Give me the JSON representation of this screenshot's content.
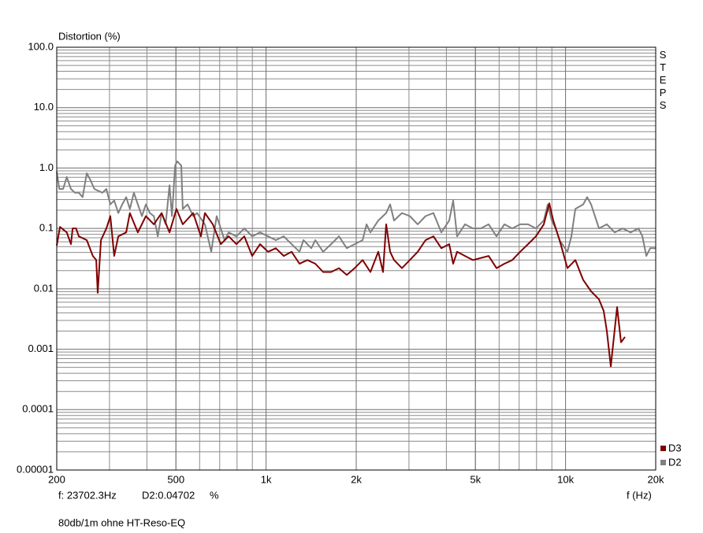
{
  "chart_data": {
    "type": "line",
    "y_label": "Distortion (%)",
    "x_label": "f (Hz)",
    "side_label": "STEPS",
    "cursor": {
      "frequency": "f: 23702.3Hz",
      "reading": "D2:0.04702",
      "unit": "%"
    },
    "note": "80db/1m ohne HT-Reso-EQ",
    "xscale": "log",
    "yscale": "log",
    "grid": true,
    "minor_grid": true,
    "legend": "bottom-right",
    "xlim": [
      200,
      20000
    ],
    "xticks": [
      200,
      500,
      {
        "value": 1000,
        "label": "1k"
      },
      {
        "value": 2000,
        "label": "2k"
      },
      {
        "value": 5000,
        "label": "5k"
      },
      {
        "value": 10000,
        "label": "10k"
      },
      {
        "value": 20000,
        "label": "20k"
      }
    ],
    "ylim": [
      1e-05,
      100
    ],
    "yticks": [
      {
        "value": 100,
        "label": "100.0"
      },
      {
        "value": 10,
        "label": "10.0"
      },
      {
        "value": 1,
        "label": "1.0"
      },
      0.1,
      0.01,
      0.001,
      0.0001,
      1e-05
    ],
    "series": [
      {
        "name": "D3",
        "color": "#800000",
        "x": [
          200,
          205,
          216,
          223,
          226,
          232,
          237,
          252,
          264,
          271,
          274,
          281,
          293,
          302,
          311,
          321,
          341,
          351,
          373,
          397,
          422,
          448,
          476,
          502,
          527,
          571,
          606,
          625,
          664,
          706,
          750,
          796,
          846,
          899,
          955,
          1015,
          1078,
          1145,
          1217,
          1293,
          1374,
          1460,
          1551,
          1648,
          1751,
          1860,
          1976,
          2100,
          2231,
          2370,
          2458,
          2518,
          2596,
          2675,
          2842,
          3020,
          3208,
          3409,
          3622,
          3848,
          4088,
          4214,
          4344,
          4616,
          4904,
          5535,
          5881,
          6248,
          6638,
          7053,
          7493,
          7962,
          8458,
          8826,
          9098,
          9549,
          10146,
          10779,
          11453,
          12168,
          12928,
          13408,
          13738,
          14158,
          14861,
          15321,
          15792
        ],
        "values": [
          0.052,
          0.106,
          0.086,
          0.055,
          0.1,
          0.1,
          0.074,
          0.064,
          0.035,
          0.03,
          0.0086,
          0.064,
          0.1,
          0.16,
          0.035,
          0.074,
          0.086,
          0.18,
          0.086,
          0.16,
          0.117,
          0.18,
          0.086,
          0.21,
          0.117,
          0.18,
          0.074,
          0.18,
          0.117,
          0.055,
          0.074,
          0.055,
          0.074,
          0.035,
          0.055,
          0.041,
          0.047,
          0.035,
          0.041,
          0.026,
          0.03,
          0.026,
          0.019,
          0.019,
          0.022,
          0.017,
          0.022,
          0.03,
          0.019,
          0.041,
          0.019,
          0.117,
          0.041,
          0.03,
          0.022,
          0.03,
          0.041,
          0.064,
          0.074,
          0.047,
          0.055,
          0.026,
          0.041,
          0.035,
          0.03,
          0.035,
          0.022,
          0.026,
          0.03,
          0.041,
          0.055,
          0.074,
          0.117,
          0.26,
          0.135,
          0.064,
          0.022,
          0.03,
          0.014,
          0.0091,
          0.0067,
          0.0043,
          0.002,
          0.00052,
          0.005,
          0.0013,
          0.0016
        ]
      },
      {
        "name": "D2",
        "color": "#808080",
        "x": [
          200,
          204,
          210,
          216,
          223,
          230,
          237,
          244,
          252,
          260,
          267,
          284,
          293,
          302,
          311,
          321,
          331,
          341,
          351,
          362,
          373,
          385,
          397,
          409,
          422,
          435,
          448,
          462,
          476,
          485,
          497,
          505,
          521,
          527,
          547,
          571,
          588,
          625,
          656,
          684,
          727,
          750,
          796,
          846,
          899,
          955,
          1015,
          1078,
          1145,
          1217,
          1293,
          1333,
          1416,
          1460,
          1551,
          1648,
          1751,
          1860,
          1976,
          2100,
          2165,
          2231,
          2370,
          2518,
          2596,
          2675,
          2842,
          3020,
          3208,
          3409,
          3622,
          3848,
          4088,
          4214,
          4344,
          4616,
          4904,
          5210,
          5535,
          5881,
          6248,
          6638,
          7053,
          7493,
          7962,
          8458,
          8720,
          8988,
          9265,
          9549,
          10146,
          10458,
          10779,
          11453,
          11805,
          12168,
          12928,
          13738,
          14594,
          15508,
          16484,
          17515,
          18052,
          18605,
          19175,
          20000
        ],
        "values": [
          0.87,
          0.45,
          0.45,
          0.71,
          0.45,
          0.39,
          0.39,
          0.33,
          0.82,
          0.61,
          0.45,
          0.39,
          0.45,
          0.25,
          0.29,
          0.18,
          0.25,
          0.33,
          0.21,
          0.39,
          0.25,
          0.16,
          0.25,
          0.18,
          0.16,
          0.074,
          0.18,
          0.117,
          0.52,
          0.16,
          1.1,
          1.29,
          1.1,
          0.21,
          0.25,
          0.16,
          0.18,
          0.117,
          0.041,
          0.16,
          0.064,
          0.086,
          0.074,
          0.1,
          0.074,
          0.086,
          0.074,
          0.064,
          0.074,
          0.055,
          0.041,
          0.064,
          0.047,
          0.064,
          0.041,
          0.055,
          0.074,
          0.047,
          0.055,
          0.064,
          0.117,
          0.086,
          0.135,
          0.18,
          0.25,
          0.135,
          0.18,
          0.16,
          0.117,
          0.16,
          0.18,
          0.086,
          0.135,
          0.29,
          0.074,
          0.117,
          0.1,
          0.1,
          0.117,
          0.074,
          0.117,
          0.1,
          0.117,
          0.117,
          0.1,
          0.135,
          0.25,
          0.135,
          0.1,
          0.064,
          0.041,
          0.074,
          0.21,
          0.25,
          0.33,
          0.25,
          0.1,
          0.117,
          0.086,
          0.1,
          0.086,
          0.1,
          0.074,
          0.035,
          0.047,
          0.047
        ]
      }
    ]
  }
}
